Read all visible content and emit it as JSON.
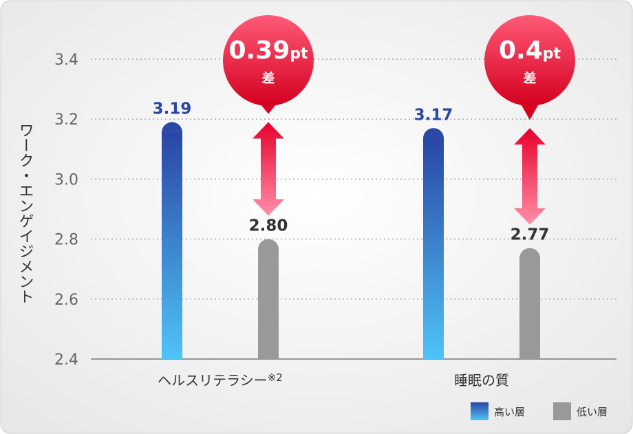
{
  "chart_data": {
    "type": "bar",
    "ylabel": "ワーク・エンゲイジメント",
    "ylim": [
      2.4,
      3.4
    ],
    "yticks": [
      "2.4",
      "2.6",
      "2.8",
      "3.0",
      "3.2",
      "3.4"
    ],
    "grid": true,
    "categories": [
      "ヘルスリテラシー",
      "睡眠の質"
    ],
    "category_note": "※2",
    "series": [
      {
        "name": "高い層",
        "values": [
          3.19,
          3.17
        ],
        "labels": [
          "3.19",
          "3.17"
        ],
        "color_top": "#2a46a6",
        "color_bottom": "#4fc3f7"
      },
      {
        "name": "低い層",
        "values": [
          2.8,
          2.77
        ],
        "labels": [
          "2.80",
          "2.77"
        ],
        "color": "#999999"
      }
    ],
    "differences": [
      {
        "value": "0.39",
        "unit": "pt",
        "label": "差"
      },
      {
        "value": "0.4",
        "unit": "pt",
        "label": "差"
      }
    ],
    "legend_position": "bottom-right",
    "accent": "#e8002c"
  }
}
